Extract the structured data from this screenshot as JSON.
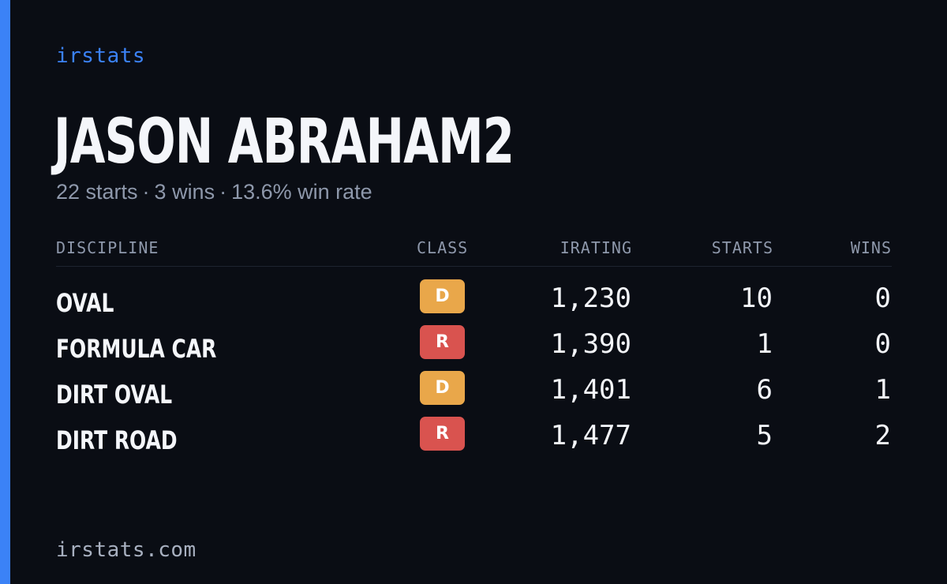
{
  "brand": "irstats",
  "driver": {
    "name": "JASON ABRAHAM2"
  },
  "summary": {
    "starts": "22 starts",
    "wins": "3 wins",
    "win_rate": "13.6% win rate",
    "separator": "·"
  },
  "table": {
    "headers": {
      "discipline": "DISCIPLINE",
      "class": "CLASS",
      "irating": "IRATING",
      "starts": "STARTS",
      "wins": "WINS"
    },
    "rows": [
      {
        "discipline": "OVAL",
        "class": "D",
        "class_color": "#e9a74a",
        "irating": "1,230",
        "starts": "10",
        "wins": "0"
      },
      {
        "discipline": "FORMULA CAR",
        "class": "R",
        "class_color": "#d9534f",
        "irating": "1,390",
        "starts": "1",
        "wins": "0"
      },
      {
        "discipline": "DIRT OVAL",
        "class": "D",
        "class_color": "#e9a74a",
        "irating": "1,401",
        "starts": "6",
        "wins": "1"
      },
      {
        "discipline": "DIRT ROAD",
        "class": "R",
        "class_color": "#d9534f",
        "irating": "1,477",
        "starts": "5",
        "wins": "2"
      }
    ]
  },
  "footer": {
    "url": "irstats.com"
  },
  "colors": {
    "accent": "#3b82f6",
    "background": "#0a0d14",
    "muted_text": "#8e98ab"
  }
}
